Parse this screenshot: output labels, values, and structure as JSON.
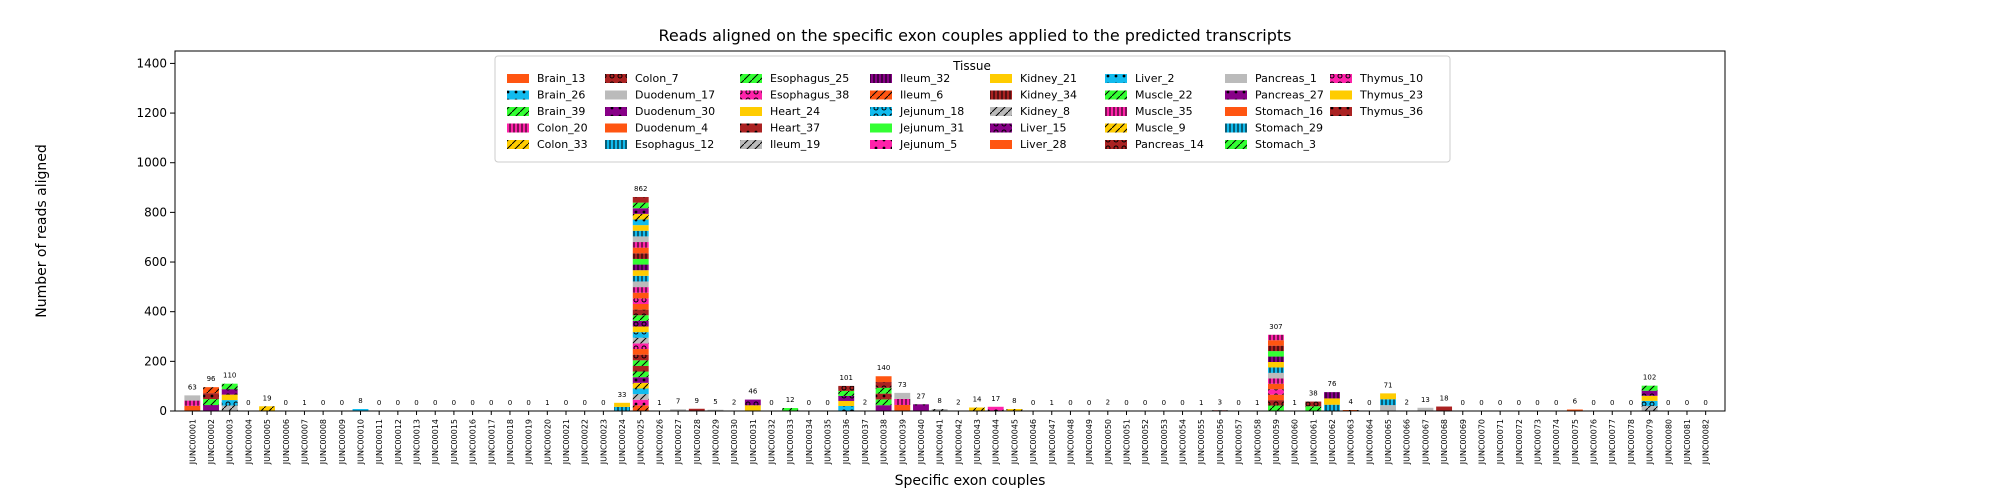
{
  "chart_data": {
    "type": "bar",
    "title": "Reads aligned on the specific exon couples applied to the predicted transcripts",
    "xlabel": "Specific exon couples",
    "ylabel": "Number of reads aligned",
    "ylim": [
      0,
      1450
    ],
    "yticks": [
      0,
      200,
      400,
      600,
      800,
      1000,
      1200,
      1400
    ],
    "grid": false,
    "legend_title": "Tissue",
    "legend_position": "top-center",
    "stacked": true,
    "legend": [
      {
        "name": "Brain_13",
        "color": "#ff5511",
        "pattern": "none"
      },
      {
        "name": "Brain_26",
        "color": "#11bbee",
        "pattern": "dot"
      },
      {
        "name": "Brain_39",
        "color": "#33ff33",
        "pattern": "slash"
      },
      {
        "name": "Colon_20",
        "color": "#ff22aa",
        "pattern": "vbar"
      },
      {
        "name": "Colon_33",
        "color": "#ffcc00",
        "pattern": "slash"
      },
      {
        "name": "Colon_7",
        "color": "#aa2222",
        "pattern": "ring"
      },
      {
        "name": "Duodenum_17",
        "color": "#bbbbbb",
        "pattern": "none"
      },
      {
        "name": "Duodenum_30",
        "color": "#880088",
        "pattern": "dot"
      },
      {
        "name": "Duodenum_4",
        "color": "#ff5511",
        "pattern": "none"
      },
      {
        "name": "Esophagus_12",
        "color": "#11bbee",
        "pattern": "vbar"
      },
      {
        "name": "Esophagus_25",
        "color": "#33ff33",
        "pattern": "slash"
      },
      {
        "name": "Esophagus_38",
        "color": "#ff22aa",
        "pattern": "ring"
      },
      {
        "name": "Heart_24",
        "color": "#ffcc00",
        "pattern": "none"
      },
      {
        "name": "Heart_37",
        "color": "#aa2222",
        "pattern": "dot"
      },
      {
        "name": "Ileum_19",
        "color": "#bbbbbb",
        "pattern": "slash"
      },
      {
        "name": "Ileum_32",
        "color": "#880088",
        "pattern": "vbar"
      },
      {
        "name": "Ileum_6",
        "color": "#ff5511",
        "pattern": "slash"
      },
      {
        "name": "Jejunum_18",
        "color": "#11bbee",
        "pattern": "ring"
      },
      {
        "name": "Jejunum_31",
        "color": "#33ff33",
        "pattern": "none"
      },
      {
        "name": "Jejunum_5",
        "color": "#ff22aa",
        "pattern": "dot"
      },
      {
        "name": "Kidney_21",
        "color": "#ffcc00",
        "pattern": "none"
      },
      {
        "name": "Kidney_34",
        "color": "#aa2222",
        "pattern": "vbar"
      },
      {
        "name": "Kidney_8",
        "color": "#bbbbbb",
        "pattern": "slash"
      },
      {
        "name": "Liver_15",
        "color": "#880088",
        "pattern": "ring"
      },
      {
        "name": "Liver_28",
        "color": "#ff5511",
        "pattern": "none"
      },
      {
        "name": "Liver_2",
        "color": "#11bbee",
        "pattern": "dot"
      },
      {
        "name": "Muscle_22",
        "color": "#33ff33",
        "pattern": "slash"
      },
      {
        "name": "Muscle_35",
        "color": "#ff22aa",
        "pattern": "vbar"
      },
      {
        "name": "Muscle_9",
        "color": "#ffcc00",
        "pattern": "slash"
      },
      {
        "name": "Pancreas_14",
        "color": "#aa2222",
        "pattern": "ring"
      },
      {
        "name": "Pancreas_1",
        "color": "#bbbbbb",
        "pattern": "none"
      },
      {
        "name": "Pancreas_27",
        "color": "#880088",
        "pattern": "dot"
      },
      {
        "name": "Stomach_16",
        "color": "#ff5511",
        "pattern": "none"
      },
      {
        "name": "Stomach_29",
        "color": "#11bbee",
        "pattern": "vbar"
      },
      {
        "name": "Stomach_3",
        "color": "#33ff33",
        "pattern": "slash"
      },
      {
        "name": "Thymus_10",
        "color": "#ff22aa",
        "pattern": "ring"
      },
      {
        "name": "Thymus_23",
        "color": "#ffcc00",
        "pattern": "none"
      },
      {
        "name": "Thymus_36",
        "color": "#aa2222",
        "pattern": "dot"
      }
    ],
    "categories": [
      "JUNC00001",
      "JUNC00002",
      "JUNC00003",
      "JUNC00004",
      "JUNC00005",
      "JUNC00006",
      "JUNC00007",
      "JUNC00008",
      "JUNC00009",
      "JUNC00010",
      "JUNC00011",
      "JUNC00012",
      "JUNC00013",
      "JUNC00014",
      "JUNC00015",
      "JUNC00016",
      "JUNC00017",
      "JUNC00018",
      "JUNC00019",
      "JUNC00020",
      "JUNC00021",
      "JUNC00022",
      "JUNC00023",
      "JUNC00024",
      "JUNC00025",
      "JUNC00026",
      "JUNC00027",
      "JUNC00028",
      "JUNC00029",
      "JUNC00030",
      "JUNC00031",
      "JUNC00032",
      "JUNC00033",
      "JUNC00034",
      "JUNC00035",
      "JUNC00036",
      "JUNC00037",
      "JUNC00038",
      "JUNC00039",
      "JUNC00040",
      "JUNC00041",
      "JUNC00042",
      "JUNC00043",
      "JUNC00044",
      "JUNC00045",
      "JUNC00046",
      "JUNC00047",
      "JUNC00048",
      "JUNC00049",
      "JUNC00050",
      "JUNC00051",
      "JUNC00052",
      "JUNC00053",
      "JUNC00054",
      "JUNC00055",
      "JUNC00056",
      "JUNC00057",
      "JUNC00058",
      "JUNC00059",
      "JUNC00060",
      "JUNC00061",
      "JUNC00062",
      "JUNC00063",
      "JUNC00064",
      "JUNC00065",
      "JUNC00066",
      "JUNC00067",
      "JUNC00068",
      "JUNC00069",
      "JUNC00070",
      "JUNC00071",
      "JUNC00072",
      "JUNC00073",
      "JUNC00074",
      "JUNC00075",
      "JUNC00076",
      "JUNC00077",
      "JUNC00078",
      "JUNC00079",
      "JUNC00080",
      "JUNC00081",
      "JUNC00082"
    ],
    "totals": [
      63,
      96,
      110,
      0,
      19,
      0,
      1,
      0,
      0,
      8,
      0,
      0,
      0,
      0,
      0,
      0,
      0,
      0,
      0,
      1,
      0,
      0,
      0,
      33,
      862,
      1,
      7,
      9,
      5,
      2,
      46,
      0,
      12,
      0,
      0,
      101,
      2,
      140,
      73,
      27,
      8,
      2,
      14,
      17,
      8,
      0,
      1,
      0,
      0,
      2,
      0,
      0,
      0,
      0,
      1,
      3,
      0,
      1,
      307,
      1,
      38,
      76,
      4,
      0,
      71,
      2,
      13,
      18,
      0,
      0,
      0,
      0,
      0,
      0,
      6,
      0,
      0,
      0,
      102,
      0,
      0,
      0
    ]
  }
}
